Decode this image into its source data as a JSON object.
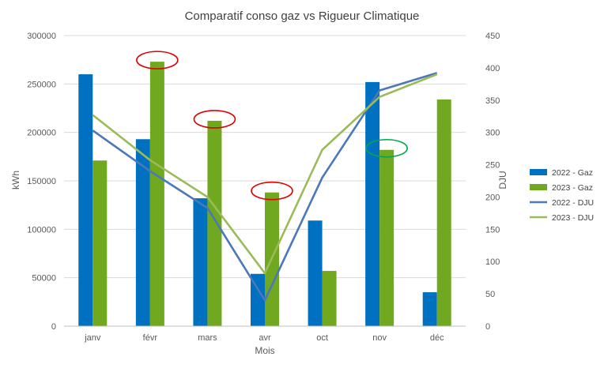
{
  "chart_data": {
    "type": "bar",
    "title": "Comparatif conso gaz vs Rigueur Climatique",
    "xlabel": "Mois",
    "ylabel": "kWh",
    "y2label": "DJU",
    "categories": [
      "janv",
      "févr",
      "mars",
      "avr",
      "oct",
      "nov",
      "déc"
    ],
    "ylim": [
      0,
      300000
    ],
    "yticks": [
      "0",
      "50000",
      "100000",
      "150000",
      "200000",
      "250000",
      "300000"
    ],
    "y2lim": [
      0,
      450
    ],
    "y2ticks": [
      "0",
      "50",
      "100",
      "150",
      "200",
      "250",
      "300",
      "350",
      "400",
      "450"
    ],
    "grid": true,
    "legend_position": "right",
    "bar_series": [
      {
        "name": "2022 -  Gaz",
        "color": "#0070c0",
        "values": [
          260000,
          193000,
          132000,
          54000,
          109000,
          252000,
          35000
        ]
      },
      {
        "name": "2023 -  Gaz",
        "color": "#70a81f",
        "values": [
          171000,
          273000,
          212000,
          138000,
          57000,
          182000,
          234000
        ]
      }
    ],
    "line_series": [
      {
        "name": "2022 - DJU",
        "color": "#4a78b8",
        "axis": "right",
        "values": [
          303,
          240,
          183,
          40,
          230,
          365,
          392
        ]
      },
      {
        "name": "2023 - DJU",
        "color": "#9bbb59",
        "axis": "right",
        "values": [
          327,
          257,
          200,
          82,
          273,
          355,
          390
        ]
      }
    ],
    "annotations": [
      {
        "type": "ellipse",
        "color": "#e00000",
        "category": "févr",
        "series": "2023 -  Gaz"
      },
      {
        "type": "ellipse",
        "color": "#e00000",
        "category": "mars",
        "series": "2023 -  Gaz"
      },
      {
        "type": "ellipse",
        "color": "#e00000",
        "category": "avr",
        "series": "2023 -  Gaz"
      },
      {
        "type": "ellipse",
        "color": "#00a84f",
        "category": "nov",
        "series": "2023 -  Gaz"
      }
    ]
  }
}
